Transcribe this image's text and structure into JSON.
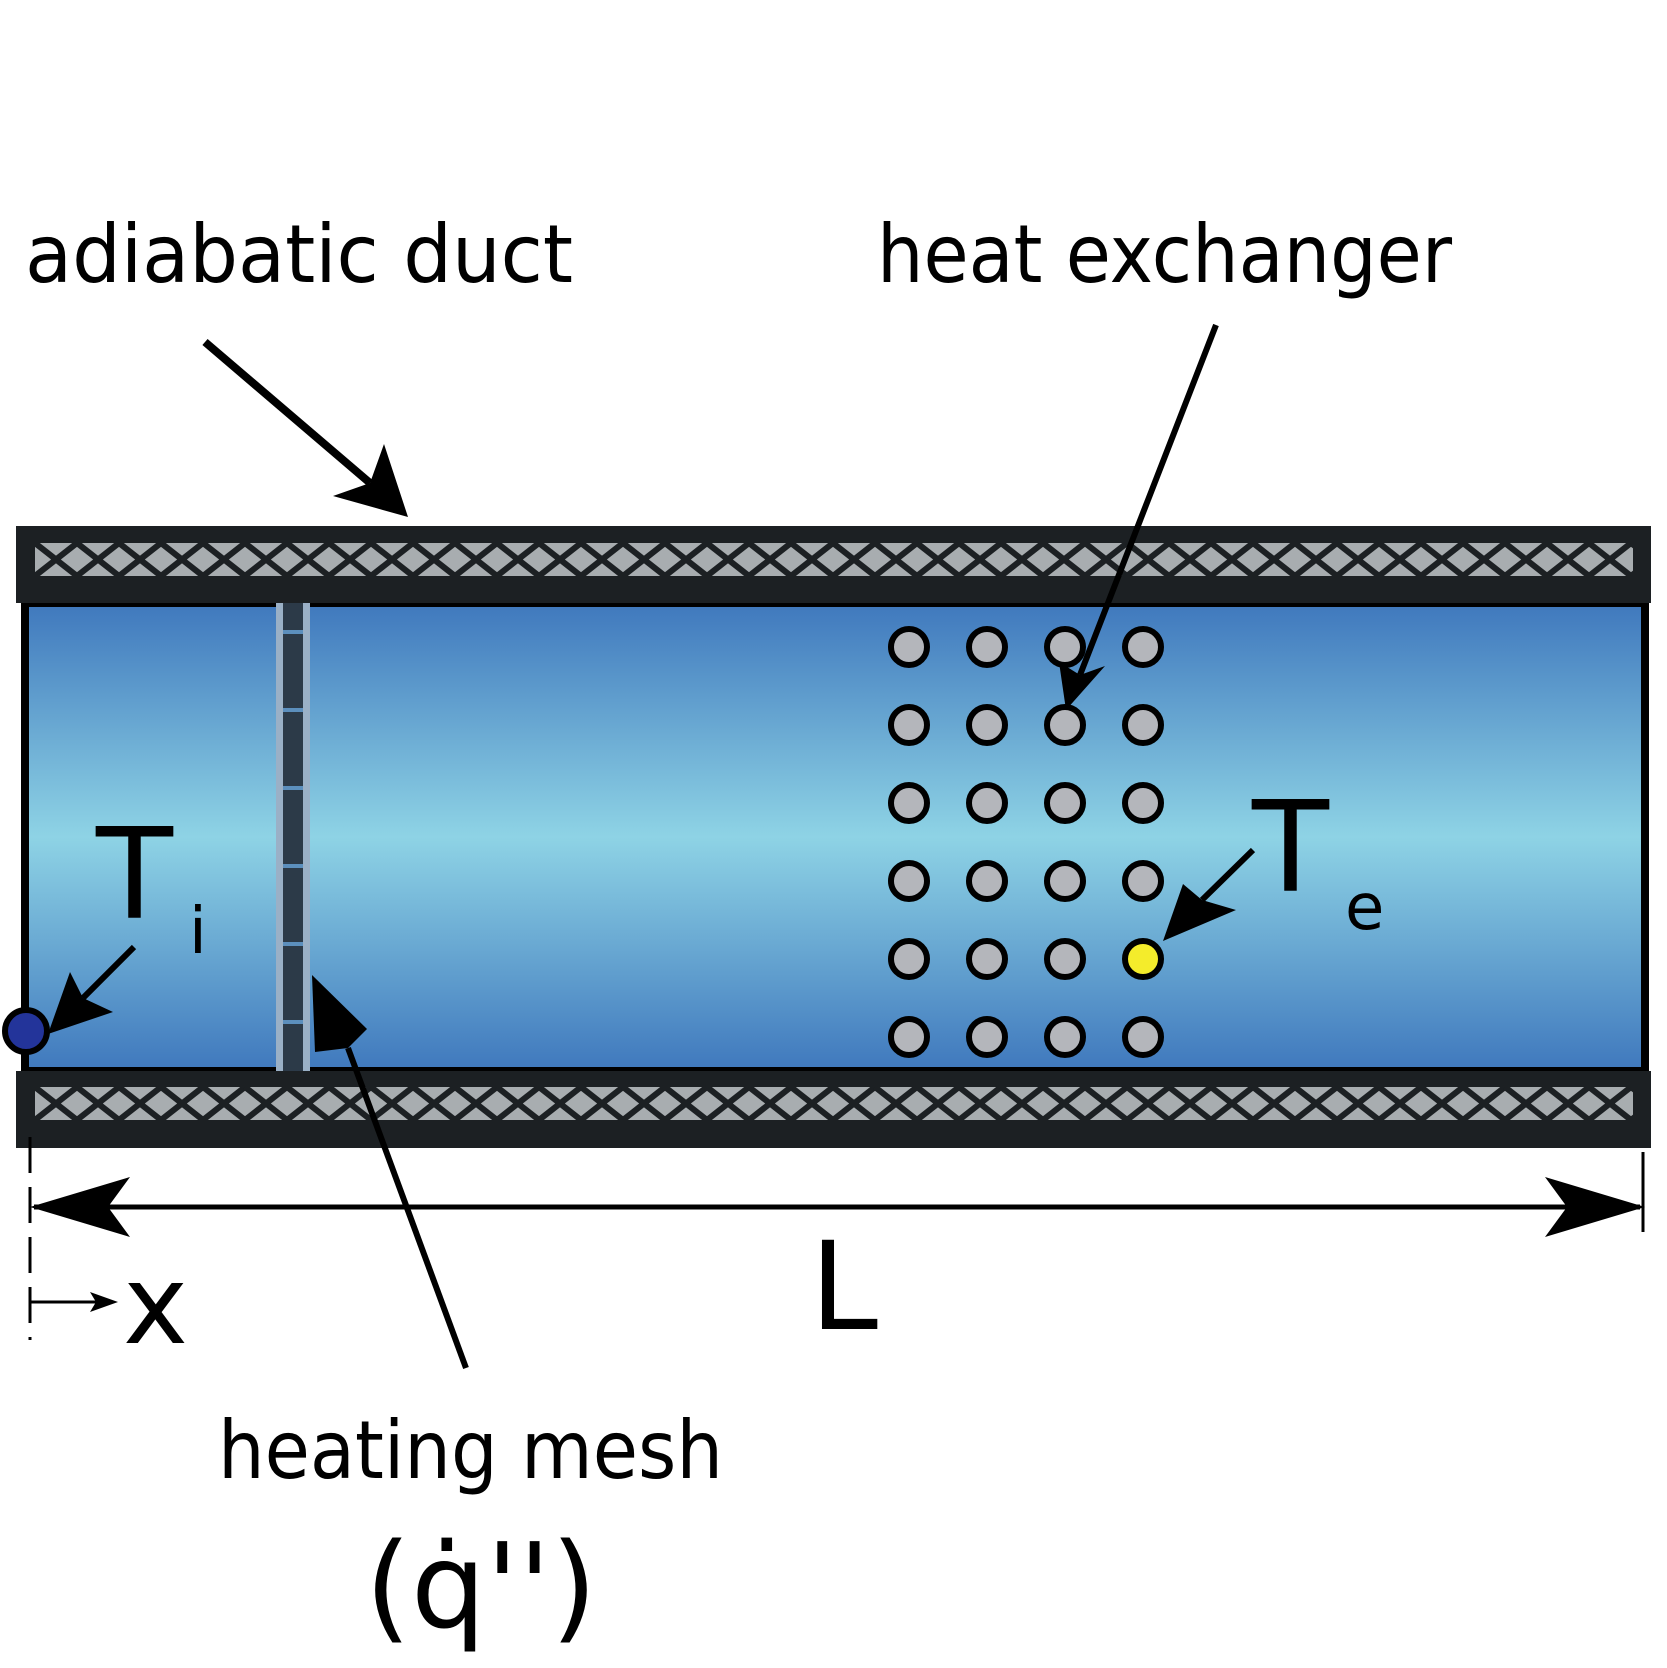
{
  "labels": {
    "adiabatic_duct": "adiabatic duct",
    "heat_exchanger": "heat exchanger",
    "heating_mesh": "heating mesh",
    "heat_flux": "(q̇'')",
    "inlet_temp_main": "T",
    "inlet_temp_sub": "i",
    "exit_temp_main": "T",
    "exit_temp_sub": "e",
    "length": "L",
    "position": "x"
  },
  "colors": {
    "fluid_edge": "#3f78bd",
    "fluid_center": "#8ed3e5",
    "wall": "#1c2023",
    "wall_pattern": "#a8adb0",
    "tube": "#b4b6bb",
    "inlet_point": "#23349a",
    "exit_point": "#f4ec2b"
  },
  "heat_exchanger": {
    "rows": 6,
    "columns": 4,
    "highlight": {
      "row": 5,
      "column": 4
    }
  }
}
